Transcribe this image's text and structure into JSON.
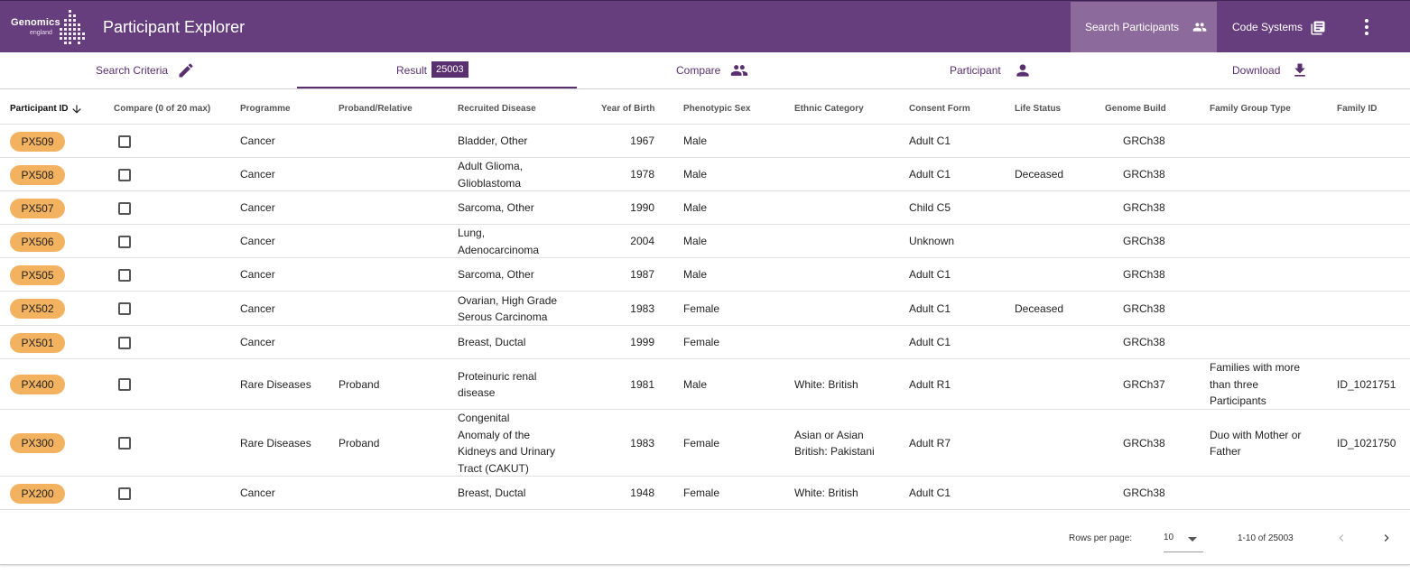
{
  "logo": {
    "line1": "Genomics",
    "line2": "england"
  },
  "app": {
    "title": "Participant Explorer"
  },
  "nav": {
    "search_participants": "Search Participants",
    "code_systems": "Code Systems"
  },
  "tabs": {
    "search_criteria": "Search Criteria",
    "result": "Result",
    "result_count": "25003",
    "compare": "Compare",
    "participant": "Participant",
    "download": "Download"
  },
  "columns": [
    "Participant ID",
    "Compare (0 of 20 max)",
    "Programme",
    "Proband/Relative",
    "Recruited Disease",
    "Year of Birth",
    "Phenotypic Sex",
    "Ethnic Category",
    "Consent Form",
    "Life Status",
    "Genome Build",
    "Family Group Type",
    "Family ID"
  ],
  "rows": [
    {
      "id": "PX509",
      "programme": "Cancer",
      "proband": "",
      "disease": [
        "Bladder, Other"
      ],
      "yob": "1967",
      "sex": "Male",
      "ethnic": [],
      "consent": "Adult C1",
      "life": "",
      "build": "GRCh38",
      "family_type": [],
      "family_id": ""
    },
    {
      "id": "PX508",
      "programme": "Cancer",
      "proband": "",
      "disease": [
        "Adult Glioma,",
        "Glioblastoma"
      ],
      "yob": "1978",
      "sex": "Male",
      "ethnic": [],
      "consent": "Adult C1",
      "life": "Deceased",
      "build": "GRCh38",
      "family_type": [],
      "family_id": ""
    },
    {
      "id": "PX507",
      "programme": "Cancer",
      "proband": "",
      "disease": [
        "Sarcoma, Other"
      ],
      "yob": "1990",
      "sex": "Male",
      "ethnic": [],
      "consent": "Child C5",
      "life": "",
      "build": "GRCh38",
      "family_type": [],
      "family_id": ""
    },
    {
      "id": "PX506",
      "programme": "Cancer",
      "proband": "",
      "disease": [
        "Lung,",
        "Adenocarcinoma"
      ],
      "yob": "2004",
      "sex": "Male",
      "ethnic": [],
      "consent": "Unknown",
      "life": "",
      "build": "GRCh38",
      "family_type": [],
      "family_id": ""
    },
    {
      "id": "PX505",
      "programme": "Cancer",
      "proband": "",
      "disease": [
        "Sarcoma, Other"
      ],
      "yob": "1987",
      "sex": "Male",
      "ethnic": [],
      "consent": "Adult C1",
      "life": "",
      "build": "GRCh38",
      "family_type": [],
      "family_id": ""
    },
    {
      "id": "PX502",
      "programme": "Cancer",
      "proband": "",
      "disease": [
        "Ovarian, High Grade",
        "Serous Carcinoma"
      ],
      "yob": "1983",
      "sex": "Female",
      "ethnic": [],
      "consent": "Adult C1",
      "life": "Deceased",
      "build": "GRCh38",
      "family_type": [],
      "family_id": ""
    },
    {
      "id": "PX501",
      "programme": "Cancer",
      "proband": "",
      "disease": [
        "Breast, Ductal"
      ],
      "yob": "1999",
      "sex": "Female",
      "ethnic": [],
      "consent": "Adult C1",
      "life": "",
      "build": "GRCh38",
      "family_type": [],
      "family_id": ""
    },
    {
      "id": "PX400",
      "programme": "Rare Diseases",
      "proband": "Proband",
      "disease": [
        "Proteinuric renal",
        "disease"
      ],
      "yob": "1981",
      "sex": "Male",
      "ethnic": [
        "White: British"
      ],
      "consent": "Adult R1",
      "life": "",
      "build": "GRCh37",
      "family_type": [
        "Families with more",
        "than three",
        "Participants"
      ],
      "family_id": "ID_1021751"
    },
    {
      "id": "PX300",
      "programme": "Rare Diseases",
      "proband": "Proband",
      "disease": [
        "Congenital",
        "Anomaly of the",
        "Kidneys and Urinary",
        "Tract (CAKUT)"
      ],
      "yob": "1983",
      "sex": "Female",
      "ethnic": [
        "Asian or Asian",
        "British: Pakistani"
      ],
      "consent": "Adult R7",
      "life": "",
      "build": "GRCh38",
      "family_type": [
        "Duo with Mother or",
        "Father"
      ],
      "family_id": "ID_1021750"
    },
    {
      "id": "PX200",
      "programme": "Cancer",
      "proband": "",
      "disease": [
        "Breast, Ductal"
      ],
      "yob": "1948",
      "sex": "Female",
      "ethnic": [
        "White: British"
      ],
      "consent": "Adult C1",
      "life": "",
      "build": "GRCh38",
      "family_type": [],
      "family_id": ""
    }
  ],
  "pagination": {
    "rows_per_page_label": "Rows per page:",
    "rows_per_page": "10",
    "range": "1-10 of 25003"
  },
  "colors": {
    "brand": "#673e7d",
    "nav_active": "#8c6a9c",
    "accent": "#5a2f70",
    "pill": "#f3b25f"
  },
  "icons": [
    "people-icon",
    "book-icon",
    "more-vert-icon",
    "pencil-icon",
    "person-icon",
    "download-icon",
    "arrow-down-icon",
    "chevron-left-icon",
    "chevron-right-icon"
  ]
}
